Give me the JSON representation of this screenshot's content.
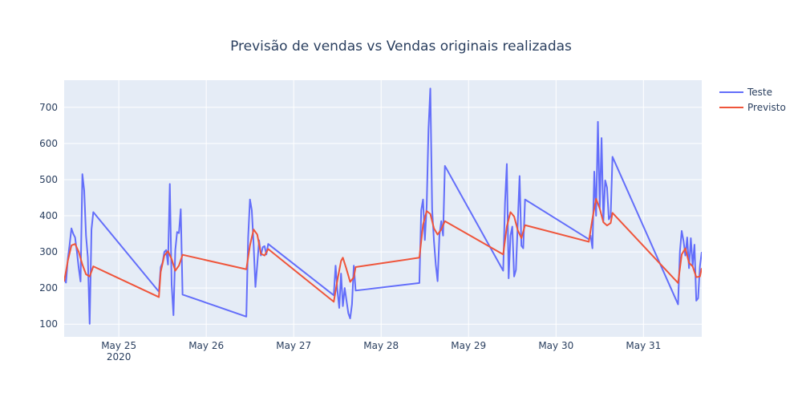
{
  "chart_data": {
    "type": "line",
    "title": "Previsão de vendas vs Vendas originais realizadas",
    "xlabel": "",
    "ylabel": "",
    "x_range": [
      "2020-05-24T09:00",
      "2020-05-31T16:00"
    ],
    "ylim": [
      65,
      775
    ],
    "y_ticks": [
      100,
      200,
      300,
      400,
      500,
      600,
      700
    ],
    "x_ticks": [
      {
        "x": "2020-05-25T00:00",
        "label": "May 25",
        "sublabel": "2020"
      },
      {
        "x": "2020-05-26T00:00",
        "label": "May 26",
        "sublabel": ""
      },
      {
        "x": "2020-05-27T00:00",
        "label": "May 27",
        "sublabel": ""
      },
      {
        "x": "2020-05-28T00:00",
        "label": "May 28",
        "sublabel": ""
      },
      {
        "x": "2020-05-29T00:00",
        "label": "May 29",
        "sublabel": ""
      },
      {
        "x": "2020-05-30T00:00",
        "label": "May 30",
        "sublabel": ""
      },
      {
        "x": "2020-05-31T00:00",
        "label": "May 31",
        "sublabel": ""
      }
    ],
    "grid": true,
    "legend_position": "top-right",
    "series": [
      {
        "name": "Teste",
        "color": "#636efa",
        "points": [
          [
            "2020-05-24T09:00",
            225
          ],
          [
            "2020-05-24T09:30",
            215
          ],
          [
            "2020-05-24T10:00",
            280
          ],
          [
            "2020-05-24T10:30",
            320
          ],
          [
            "2020-05-24T11:00",
            365
          ],
          [
            "2020-05-24T11:30",
            350
          ],
          [
            "2020-05-24T12:00",
            340
          ],
          [
            "2020-05-24T12:30",
            300
          ],
          [
            "2020-05-24T13:00",
            255
          ],
          [
            "2020-05-24T13:30",
            218
          ],
          [
            "2020-05-24T14:00",
            515
          ],
          [
            "2020-05-24T14:30",
            470
          ],
          [
            "2020-05-24T15:00",
            345
          ],
          [
            "2020-05-24T15:30",
            285
          ],
          [
            "2020-05-24T16:00",
            101
          ],
          [
            "2020-05-24T16:30",
            362
          ],
          [
            "2020-05-24T17:00",
            410
          ],
          [
            "2020-05-25T11:00",
            190
          ],
          [
            "2020-05-25T11:30",
            258
          ],
          [
            "2020-05-25T12:00",
            270
          ],
          [
            "2020-05-25T12:30",
            300
          ],
          [
            "2020-05-25T13:00",
            305
          ],
          [
            "2020-05-25T13:30",
            265
          ],
          [
            "2020-05-25T14:00",
            488
          ],
          [
            "2020-05-25T14:30",
            210
          ],
          [
            "2020-05-25T15:00",
            125
          ],
          [
            "2020-05-25T15:30",
            305
          ],
          [
            "2020-05-25T16:00",
            355
          ],
          [
            "2020-05-25T16:30",
            352
          ],
          [
            "2020-05-25T17:00",
            418
          ],
          [
            "2020-05-25T17:30",
            182
          ],
          [
            "2020-05-26T11:00",
            121
          ],
          [
            "2020-05-26T11:30",
            340
          ],
          [
            "2020-05-26T12:00",
            445
          ],
          [
            "2020-05-26T12:30",
            415
          ],
          [
            "2020-05-26T13:00",
            320
          ],
          [
            "2020-05-26T13:30",
            203
          ],
          [
            "2020-05-26T14:00",
            265
          ],
          [
            "2020-05-26T14:30",
            332
          ],
          [
            "2020-05-26T15:00",
            290
          ],
          [
            "2020-05-26T15:30",
            313
          ],
          [
            "2020-05-26T16:00",
            316
          ],
          [
            "2020-05-26T16:30",
            293
          ],
          [
            "2020-05-26T17:00",
            322
          ],
          [
            "2020-05-27T11:00",
            180
          ],
          [
            "2020-05-27T11:30",
            262
          ],
          [
            "2020-05-27T12:00",
            193
          ],
          [
            "2020-05-27T12:30",
            145
          ],
          [
            "2020-05-27T13:00",
            240
          ],
          [
            "2020-05-27T13:30",
            150
          ],
          [
            "2020-05-27T14:00",
            200
          ],
          [
            "2020-05-27T14:30",
            165
          ],
          [
            "2020-05-27T15:00",
            130
          ],
          [
            "2020-05-27T15:30",
            116
          ],
          [
            "2020-05-27T16:00",
            155
          ],
          [
            "2020-05-27T16:30",
            262
          ],
          [
            "2020-05-27T17:00",
            193
          ],
          [
            "2020-05-28T10:30",
            214
          ],
          [
            "2020-05-28T11:00",
            415
          ],
          [
            "2020-05-28T11:30",
            445
          ],
          [
            "2020-05-28T12:00",
            333
          ],
          [
            "2020-05-28T12:30",
            425
          ],
          [
            "2020-05-28T13:00",
            640
          ],
          [
            "2020-05-28T13:30",
            752
          ],
          [
            "2020-05-28T14:00",
            418
          ],
          [
            "2020-05-28T14:30",
            330
          ],
          [
            "2020-05-28T15:00",
            265
          ],
          [
            "2020-05-28T15:30",
            219
          ],
          [
            "2020-05-28T16:00",
            346
          ],
          [
            "2020-05-28T16:30",
            385
          ],
          [
            "2020-05-28T17:00",
            345
          ],
          [
            "2020-05-28T17:30",
            538
          ],
          [
            "2020-05-29T09:30",
            248
          ],
          [
            "2020-05-29T10:00",
            435
          ],
          [
            "2020-05-29T10:30",
            543
          ],
          [
            "2020-05-29T11:00",
            227
          ],
          [
            "2020-05-29T11:30",
            345
          ],
          [
            "2020-05-29T12:00",
            370
          ],
          [
            "2020-05-29T12:30",
            232
          ],
          [
            "2020-05-29T13:00",
            250
          ],
          [
            "2020-05-29T13:30",
            380
          ],
          [
            "2020-05-29T14:00",
            510
          ],
          [
            "2020-05-29T14:30",
            317
          ],
          [
            "2020-05-29T15:00",
            310
          ],
          [
            "2020-05-29T15:30",
            445
          ],
          [
            "2020-05-30T09:00",
            335
          ],
          [
            "2020-05-30T09:30",
            345
          ],
          [
            "2020-05-30T10:00",
            310
          ],
          [
            "2020-05-30T10:30",
            522
          ],
          [
            "2020-05-30T11:00",
            400
          ],
          [
            "2020-05-30T11:30",
            660
          ],
          [
            "2020-05-30T12:00",
            420
          ],
          [
            "2020-05-30T12:30",
            615
          ],
          [
            "2020-05-30T13:00",
            385
          ],
          [
            "2020-05-30T13:30",
            498
          ],
          [
            "2020-05-30T14:00",
            478
          ],
          [
            "2020-05-30T14:30",
            390
          ],
          [
            "2020-05-30T15:00",
            400
          ],
          [
            "2020-05-30T15:30",
            563
          ],
          [
            "2020-05-31T09:30",
            155
          ],
          [
            "2020-05-31T10:00",
            300
          ],
          [
            "2020-05-31T10:30",
            358
          ],
          [
            "2020-05-31T11:00",
            330
          ],
          [
            "2020-05-31T11:30",
            290
          ],
          [
            "2020-05-31T12:00",
            340
          ],
          [
            "2020-05-31T12:30",
            255
          ],
          [
            "2020-05-31T13:00",
            338
          ],
          [
            "2020-05-31T13:30",
            262
          ],
          [
            "2020-05-31T14:00",
            320
          ],
          [
            "2020-05-31T14:30",
            165
          ],
          [
            "2020-05-31T15:00",
            172
          ],
          [
            "2020-05-31T15:30",
            260
          ],
          [
            "2020-05-31T16:00",
            300
          ]
        ]
      },
      {
        "name": "Previsto",
        "color": "#ef553b",
        "points": [
          [
            "2020-05-24T09:00",
            218
          ],
          [
            "2020-05-24T10:00",
            275
          ],
          [
            "2020-05-24T11:00",
            318
          ],
          [
            "2020-05-24T12:00",
            322
          ],
          [
            "2020-05-24T13:00",
            300
          ],
          [
            "2020-05-24T14:00",
            265
          ],
          [
            "2020-05-24T15:00",
            238
          ],
          [
            "2020-05-24T16:00",
            232
          ],
          [
            "2020-05-24T17:00",
            260
          ],
          [
            "2020-05-25T11:00",
            175
          ],
          [
            "2020-05-25T11:30",
            245
          ],
          [
            "2020-05-25T12:30",
            290
          ],
          [
            "2020-05-25T13:30",
            302
          ],
          [
            "2020-05-25T14:30",
            280
          ],
          [
            "2020-05-25T15:30",
            248
          ],
          [
            "2020-05-25T16:30",
            262
          ],
          [
            "2020-05-25T17:30",
            292
          ],
          [
            "2020-05-26T11:00",
            252
          ],
          [
            "2020-05-26T12:00",
            318
          ],
          [
            "2020-05-26T13:00",
            362
          ],
          [
            "2020-05-26T14:00",
            348
          ],
          [
            "2020-05-26T15:00",
            295
          ],
          [
            "2020-05-26T16:00",
            290
          ],
          [
            "2020-05-26T17:00",
            308
          ],
          [
            "2020-05-27T11:00",
            162
          ],
          [
            "2020-05-27T12:00",
            222
          ],
          [
            "2020-05-27T13:00",
            275
          ],
          [
            "2020-05-27T13:30",
            284
          ],
          [
            "2020-05-27T14:30",
            252
          ],
          [
            "2020-05-27T15:30",
            217
          ],
          [
            "2020-05-27T16:30",
            230
          ],
          [
            "2020-05-27T17:00",
            258
          ],
          [
            "2020-05-28T10:30",
            284
          ],
          [
            "2020-05-28T11:30",
            375
          ],
          [
            "2020-05-28T12:30",
            413
          ],
          [
            "2020-05-28T13:30",
            405
          ],
          [
            "2020-05-28T14:30",
            365
          ],
          [
            "2020-05-28T15:30",
            348
          ],
          [
            "2020-05-28T16:30",
            362
          ],
          [
            "2020-05-28T17:30",
            385
          ],
          [
            "2020-05-29T09:30",
            293
          ],
          [
            "2020-05-29T10:30",
            370
          ],
          [
            "2020-05-29T11:30",
            410
          ],
          [
            "2020-05-29T12:30",
            398
          ],
          [
            "2020-05-29T13:30",
            360
          ],
          [
            "2020-05-29T14:30",
            338
          ],
          [
            "2020-05-29T15:30",
            374
          ],
          [
            "2020-05-30T09:00",
            328
          ],
          [
            "2020-05-30T10:00",
            392
          ],
          [
            "2020-05-30T11:00",
            447
          ],
          [
            "2020-05-30T12:00",
            420
          ],
          [
            "2020-05-30T13:00",
            382
          ],
          [
            "2020-05-30T14:00",
            373
          ],
          [
            "2020-05-30T15:00",
            380
          ],
          [
            "2020-05-30T15:30",
            408
          ],
          [
            "2020-05-31T09:30",
            214
          ],
          [
            "2020-05-31T10:30",
            293
          ],
          [
            "2020-05-31T11:30",
            310
          ],
          [
            "2020-05-31T12:30",
            270
          ],
          [
            "2020-05-31T13:30",
            260
          ],
          [
            "2020-05-31T14:30",
            230
          ],
          [
            "2020-05-31T15:30",
            232
          ],
          [
            "2020-05-31T16:00",
            255
          ]
        ]
      }
    ]
  },
  "colors": {
    "plot_background": "#e5ecf6",
    "grid": "#ffffff",
    "text": "#2a3f5f"
  }
}
